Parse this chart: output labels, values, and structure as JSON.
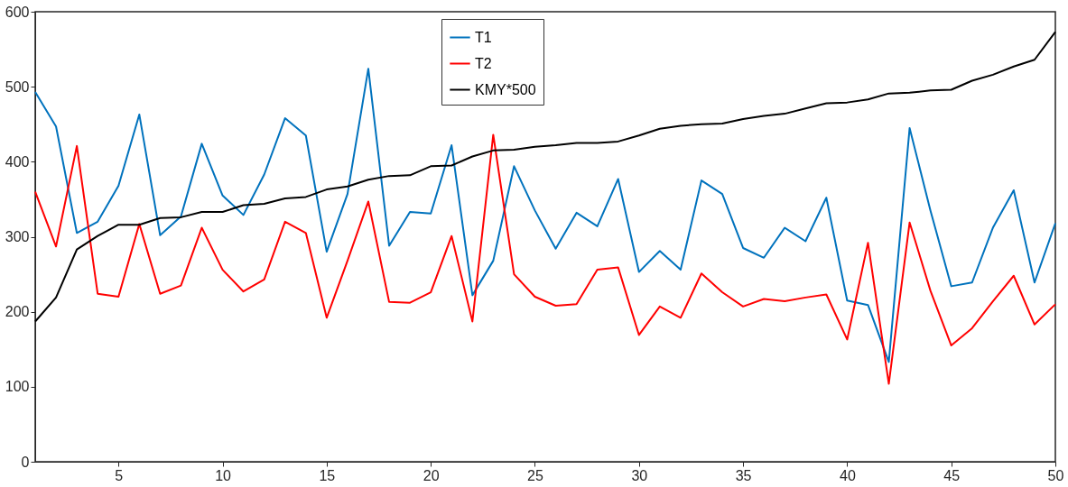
{
  "chart_data": {
    "type": "line",
    "x": [
      1,
      2,
      3,
      4,
      5,
      6,
      7,
      8,
      9,
      10,
      11,
      12,
      13,
      14,
      15,
      16,
      17,
      18,
      19,
      20,
      21,
      22,
      23,
      24,
      25,
      26,
      27,
      28,
      29,
      30,
      31,
      32,
      33,
      34,
      35,
      36,
      37,
      38,
      39,
      40,
      41,
      42,
      43,
      44,
      45,
      46,
      47,
      48,
      49,
      50
    ],
    "series": [
      {
        "name": "T1",
        "color": "#0072bd",
        "values": [
          493,
          447,
          305,
          320,
          368,
          463,
          302,
          327,
          424,
          355,
          329,
          383,
          458,
          435,
          280,
          357,
          524,
          288,
          333,
          331,
          422,
          222,
          268,
          394,
          335,
          284,
          332,
          314,
          377,
          253,
          281,
          256,
          375,
          357,
          285,
          272,
          312,
          294,
          352,
          215,
          209,
          133,
          445,
          335,
          234,
          239,
          312,
          362,
          239,
          318
        ]
      },
      {
        "name": "T2",
        "color": "#ff0000",
        "values": [
          360,
          287,
          421,
          224,
          220,
          317,
          224,
          235,
          312,
          256,
          227,
          243,
          320,
          305,
          192,
          268,
          347,
          213,
          212,
          226,
          301,
          187,
          436,
          250,
          220,
          208,
          210,
          256,
          259,
          169,
          207,
          192,
          251,
          226,
          207,
          217,
          214,
          219,
          223,
          163,
          292,
          104,
          319,
          228,
          155,
          178,
          214,
          248,
          183,
          210
        ]
      },
      {
        "name": "KMY*500",
        "color": "#000000",
        "values": [
          187,
          219,
          283,
          301,
          316,
          316,
          325,
          326,
          333,
          333,
          342,
          344,
          351,
          353,
          363,
          367,
          376,
          381,
          382,
          394,
          395,
          407,
          415,
          416,
          420,
          422,
          425,
          425,
          427,
          435,
          444,
          448,
          450,
          451,
          457,
          461,
          464,
          471,
          478,
          479,
          483,
          491,
          492,
          495,
          496,
          508,
          516,
          527,
          536,
          573
        ]
      }
    ],
    "xlim": [
      1,
      50
    ],
    "xticks": [
      5,
      10,
      15,
      20,
      25,
      30,
      35,
      40,
      45,
      50
    ],
    "ylim": [
      0,
      600
    ],
    "yticks": [
      0,
      100,
      200,
      300,
      400,
      500,
      600
    ],
    "grid": false,
    "legend": "top",
    "marker": "none",
    "line_style": "solid"
  }
}
